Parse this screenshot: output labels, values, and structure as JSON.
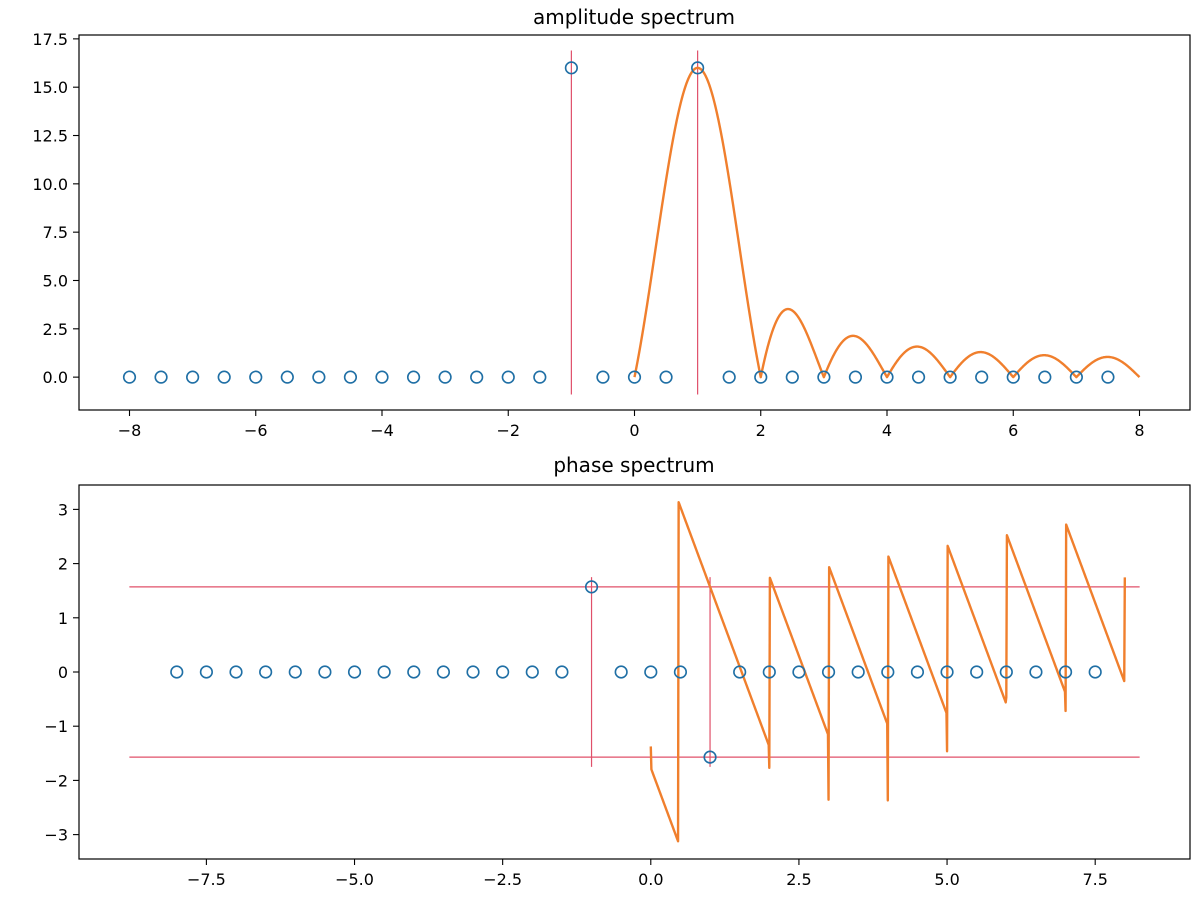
{
  "chart_data": [
    {
      "type": "line",
      "title": "amplitude spectrum",
      "xlabel": "",
      "ylabel": "",
      "xlim": [
        -8.8,
        8.8
      ],
      "ylim": [
        -1.7,
        17.7
      ],
      "x_ticks": [
        -8,
        -6,
        -4,
        -2,
        0,
        2,
        4,
        6,
        8
      ],
      "x_tick_labels": [
        "−8",
        "−6",
        "−4",
        "−2",
        "0",
        "2",
        "4",
        "6",
        "8"
      ],
      "y_ticks": [
        0,
        2.5,
        5,
        7.5,
        10,
        12.5,
        15,
        17.5
      ],
      "y_tick_labels": [
        "0.0",
        "2.5",
        "5.0",
        "7.5",
        "10.0",
        "12.5",
        "15.0",
        "17.5"
      ],
      "grid": false,
      "series": [
        {
          "kind": "scatter-hollow",
          "color": "#1f6fa5",
          "points": [
            [
              -8,
              0
            ],
            [
              -7.5,
              0
            ],
            [
              -7,
              0
            ],
            [
              -6.5,
              0
            ],
            [
              -6,
              0
            ],
            [
              -5.5,
              0
            ],
            [
              -5,
              0
            ],
            [
              -4.5,
              0
            ],
            [
              -4,
              0
            ],
            [
              -3.5,
              0
            ],
            [
              -3,
              0
            ],
            [
              -2.5,
              0
            ],
            [
              -2,
              0
            ],
            [
              -1.5,
              0
            ],
            [
              -1,
              16
            ],
            [
              -0.5,
              0
            ],
            [
              0,
              0
            ],
            [
              0.5,
              0
            ],
            [
              1,
              16
            ],
            [
              1.5,
              0
            ],
            [
              2,
              0
            ],
            [
              2.5,
              0
            ],
            [
              3,
              0
            ],
            [
              3.5,
              0
            ],
            [
              4,
              0
            ],
            [
              4.5,
              0
            ],
            [
              5,
              0
            ],
            [
              5.5,
              0
            ],
            [
              6,
              0
            ],
            [
              6.5,
              0
            ],
            [
              7,
              0
            ],
            [
              7.5,
              0
            ]
          ]
        },
        {
          "kind": "line",
          "color": "#f07f2d",
          "description_formula": "|sum_{n=0..15} exp(-j*n*2*pi*(f-1)/16)|, f from 0 to 8",
          "x_range": [
            0,
            8
          ]
        },
        {
          "kind": "vlines",
          "color": "#e0506a",
          "lines": [
            {
              "x": -1,
              "ymin": -0.9,
              "ymax": 16.9
            },
            {
              "x": 1,
              "ymin": -0.9,
              "ymax": 16.9
            }
          ]
        }
      ]
    },
    {
      "type": "line",
      "title": "phase spectrum",
      "xlabel": "",
      "ylabel": "",
      "xlim": [
        -9.65,
        9.1
      ],
      "ylim": [
        -3.45,
        3.45
      ],
      "x_ticks": [
        -7.5,
        -5,
        -2.5,
        0,
        2.5,
        5,
        7.5
      ],
      "x_tick_labels": [
        "−7.5",
        "−5.0",
        "−2.5",
        "0.0",
        "2.5",
        "5.0",
        "7.5"
      ],
      "y_ticks": [
        -3,
        -2,
        -1,
        0,
        1,
        2,
        3
      ],
      "y_tick_labels": [
        "−3",
        "−2",
        "−1",
        "0",
        "1",
        "2",
        "3"
      ],
      "grid": false,
      "series": [
        {
          "kind": "scatter-hollow",
          "color": "#1f6fa5",
          "points": [
            [
              -8,
              0
            ],
            [
              -7.5,
              0
            ],
            [
              -7,
              0
            ],
            [
              -6.5,
              0
            ],
            [
              -6,
              0
            ],
            [
              -5.5,
              0
            ],
            [
              -5,
              0
            ],
            [
              -4.5,
              0
            ],
            [
              -4,
              0
            ],
            [
              -3.5,
              0
            ],
            [
              -3,
              0
            ],
            [
              -2.5,
              0
            ],
            [
              -2,
              0
            ],
            [
              -1.5,
              0
            ],
            [
              -1,
              1.5708
            ],
            [
              -0.5,
              0
            ],
            [
              0,
              0
            ],
            [
              0.5,
              0
            ],
            [
              1,
              -1.5708
            ],
            [
              1.5,
              0
            ],
            [
              2,
              0
            ],
            [
              2.5,
              0
            ],
            [
              3,
              0
            ],
            [
              3.5,
              0
            ],
            [
              4,
              0
            ],
            [
              4.5,
              0
            ],
            [
              5,
              0
            ],
            [
              5.5,
              0
            ],
            [
              6,
              0
            ],
            [
              6.5,
              0
            ],
            [
              7,
              0
            ],
            [
              7.5,
              0
            ]
          ]
        },
        {
          "kind": "line",
          "color": "#f07f2d",
          "description_formula": "angle(sum_{n=0..15} exp(-j*n*2*pi*(f-1)/16)) + pi/2 (wrapped), f from 0 to 8",
          "x_range": [
            0,
            8
          ]
        },
        {
          "kind": "hlines",
          "color": "#e0506a",
          "lines": [
            {
              "y": 1.5708,
              "xmin": -8.8,
              "xmax": 8.25
            },
            {
              "y": -1.5708,
              "xmin": -8.8,
              "xmax": 8.25
            }
          ]
        },
        {
          "kind": "vlines",
          "color": "#e0506a",
          "lines": [
            {
              "x": -1,
              "ymin": -1.75,
              "ymax": 1.75
            },
            {
              "x": 1,
              "ymin": -1.75,
              "ymax": 1.75
            }
          ]
        }
      ]
    }
  ]
}
